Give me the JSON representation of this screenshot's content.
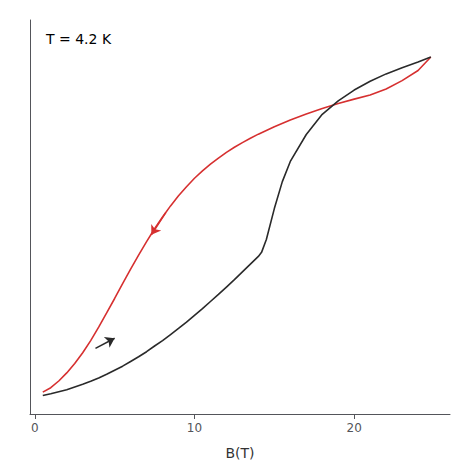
{
  "chart_data": {
    "type": "line",
    "xlabel": "B(T)",
    "annotation": "T = 4.2 K",
    "xlim": [
      -0.3,
      26
    ],
    "ylim": [
      -0.05,
      1.12
    ],
    "xticks": [
      0,
      10,
      20
    ],
    "yticks": [],
    "grid": false,
    "tick_labels": "x",
    "series": [
      {
        "color": "#d63030",
        "x": [
          0.5,
          1.0,
          1.5,
          2.0,
          2.5,
          3.0,
          3.5,
          4.0,
          4.5,
          5.0,
          5.5,
          6.0,
          6.5,
          7.0,
          7.5,
          8.0,
          8.5,
          9.0,
          9.5,
          10.0,
          10.5,
          11.0,
          11.5,
          12.0,
          12.5,
          13.0,
          13.5,
          14.0,
          15.0,
          16.0,
          17.0,
          18.0,
          19.0,
          20.0,
          21.0,
          22.0,
          23.0,
          24.0,
          24.8
        ],
        "values": [
          0.015,
          0.028,
          0.048,
          0.072,
          0.1,
          0.132,
          0.168,
          0.208,
          0.25,
          0.293,
          0.337,
          0.38,
          0.422,
          0.462,
          0.5,
          0.535,
          0.568,
          0.598,
          0.625,
          0.65,
          0.672,
          0.692,
          0.71,
          0.727,
          0.742,
          0.756,
          0.769,
          0.781,
          0.803,
          0.823,
          0.841,
          0.857,
          0.872,
          0.885,
          0.897,
          0.915,
          0.94,
          0.97,
          1.01
        ],
        "arrow": {
          "from": [
            8.2,
            0.548
          ],
          "to": [
            7.3,
            0.482
          ]
        }
      },
      {
        "color": "#2a2a2a",
        "x": [
          0.5,
          1.0,
          1.5,
          2.0,
          2.5,
          3.0,
          3.5,
          4.0,
          4.5,
          5.0,
          5.5,
          6.0,
          6.5,
          7.0,
          7.5,
          8.0,
          8.5,
          9.0,
          9.5,
          10.0,
          10.5,
          11.0,
          11.5,
          12.0,
          12.5,
          13.0,
          13.5,
          14.0,
          14.2,
          14.5,
          15.0,
          15.5,
          16.0,
          17.0,
          18.0,
          19.0,
          20.0,
          21.0,
          22.0,
          23.0,
          24.0,
          24.8
        ],
        "values": [
          0.005,
          0.01,
          0.016,
          0.022,
          0.03,
          0.038,
          0.047,
          0.057,
          0.068,
          0.08,
          0.092,
          0.106,
          0.12,
          0.135,
          0.152,
          0.168,
          0.186,
          0.204,
          0.223,
          0.243,
          0.263,
          0.284,
          0.305,
          0.327,
          0.349,
          0.372,
          0.395,
          0.418,
          0.43,
          0.468,
          0.56,
          0.64,
          0.7,
          0.78,
          0.84,
          0.88,
          0.912,
          0.938,
          0.96,
          0.978,
          0.995,
          1.01
        ],
        "arrow": {
          "from": [
            3.8,
            0.145
          ],
          "to": [
            5.0,
            0.175
          ]
        }
      }
    ]
  }
}
